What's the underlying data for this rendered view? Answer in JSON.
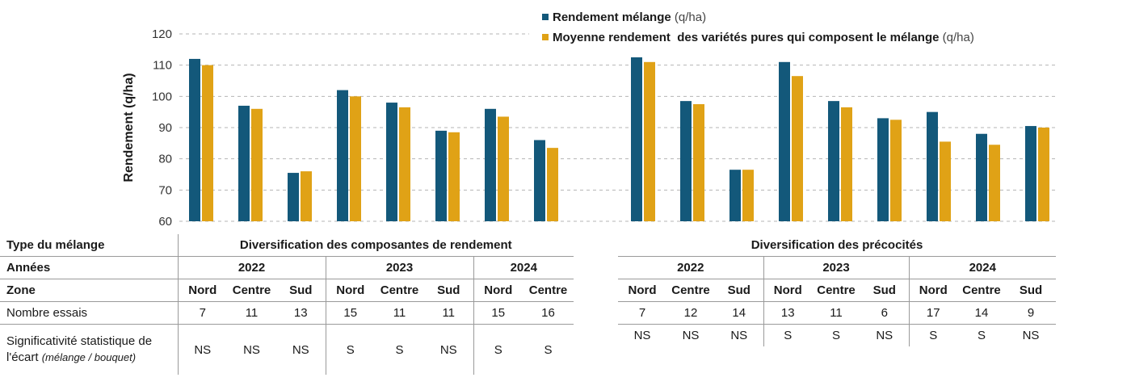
{
  "chart_data": {
    "type": "bar",
    "ylabel": "Rendement (q/ha)",
    "ylim": [
      60,
      120
    ],
    "yticks": [
      60,
      70,
      80,
      90,
      100,
      110,
      120
    ],
    "grid": true,
    "legend_position": "top-right",
    "groups": [
      {
        "name": "Diversification des composantes de rendement",
        "categories": [
          "2022 Nord",
          "2022 Centre",
          "2022 Sud",
          "2023 Nord",
          "2023 Centre",
          "2023 Sud",
          "2024 Nord",
          "2024 Centre"
        ]
      },
      {
        "name": "Diversification des précocités",
        "categories": [
          "2022 Nord",
          "2022 Centre",
          "2022 Sud",
          "2023 Nord",
          "2023 Centre",
          "2023 Sud",
          "2024 Nord",
          "2024 Centre",
          "2024 Sud"
        ]
      }
    ],
    "series": [
      {
        "name": "Rendement mélange",
        "unit": "(q/ha)",
        "color": "#13587a",
        "values": [
          [
            112,
            97,
            75.5,
            102,
            98,
            89,
            96,
            86
          ],
          [
            112.5,
            98.5,
            76.5,
            111,
            98.5,
            93,
            95,
            88,
            90.5
          ]
        ]
      },
      {
        "name": "Moyenne rendement  des variétés pures qui composent le mélange",
        "unit": "(q/ha)",
        "color": "#e0a216",
        "values": [
          [
            110,
            96,
            76,
            100,
            96.5,
            88.5,
            93.5,
            83.5
          ],
          [
            111,
            97.5,
            76.5,
            106.5,
            96.5,
            92.5,
            85.5,
            84.5,
            90
          ]
        ]
      }
    ]
  },
  "table": {
    "row_labels": {
      "type": "Type du mélange",
      "annees": "Années",
      "zone": "Zone",
      "essais": "Nombre essais",
      "sig_line1": "Significativité statistique de",
      "sig_line2": "l'écart",
      "sig_paren": "(mélange / bouquet)"
    },
    "left": {
      "title": "Diversification des composantes de rendement",
      "years": [
        "2022",
        "2023",
        "2024"
      ],
      "zones": [
        "Nord",
        "Centre",
        "Sud",
        "Nord",
        "Centre",
        "Sud",
        "Nord",
        "Centre"
      ],
      "essais": [
        "7",
        "11",
        "13",
        "15",
        "11",
        "11",
        "15",
        "16"
      ],
      "sig": [
        "NS",
        "NS",
        "NS",
        "S",
        "S",
        "NS",
        "S",
        "S"
      ]
    },
    "right": {
      "title": "Diversification des précocités",
      "years": [
        "2022",
        "2023",
        "2024"
      ],
      "zones": [
        "Nord",
        "Centre",
        "Sud",
        "Nord",
        "Centre",
        "Sud",
        "Nord",
        "Centre",
        "Sud"
      ],
      "essais": [
        "7",
        "12",
        "14",
        "13",
        "11",
        "6",
        "17",
        "14",
        "9"
      ],
      "sig": [
        "NS",
        "NS",
        "NS",
        "S",
        "S",
        "NS",
        "S",
        "S",
        "NS"
      ]
    }
  }
}
